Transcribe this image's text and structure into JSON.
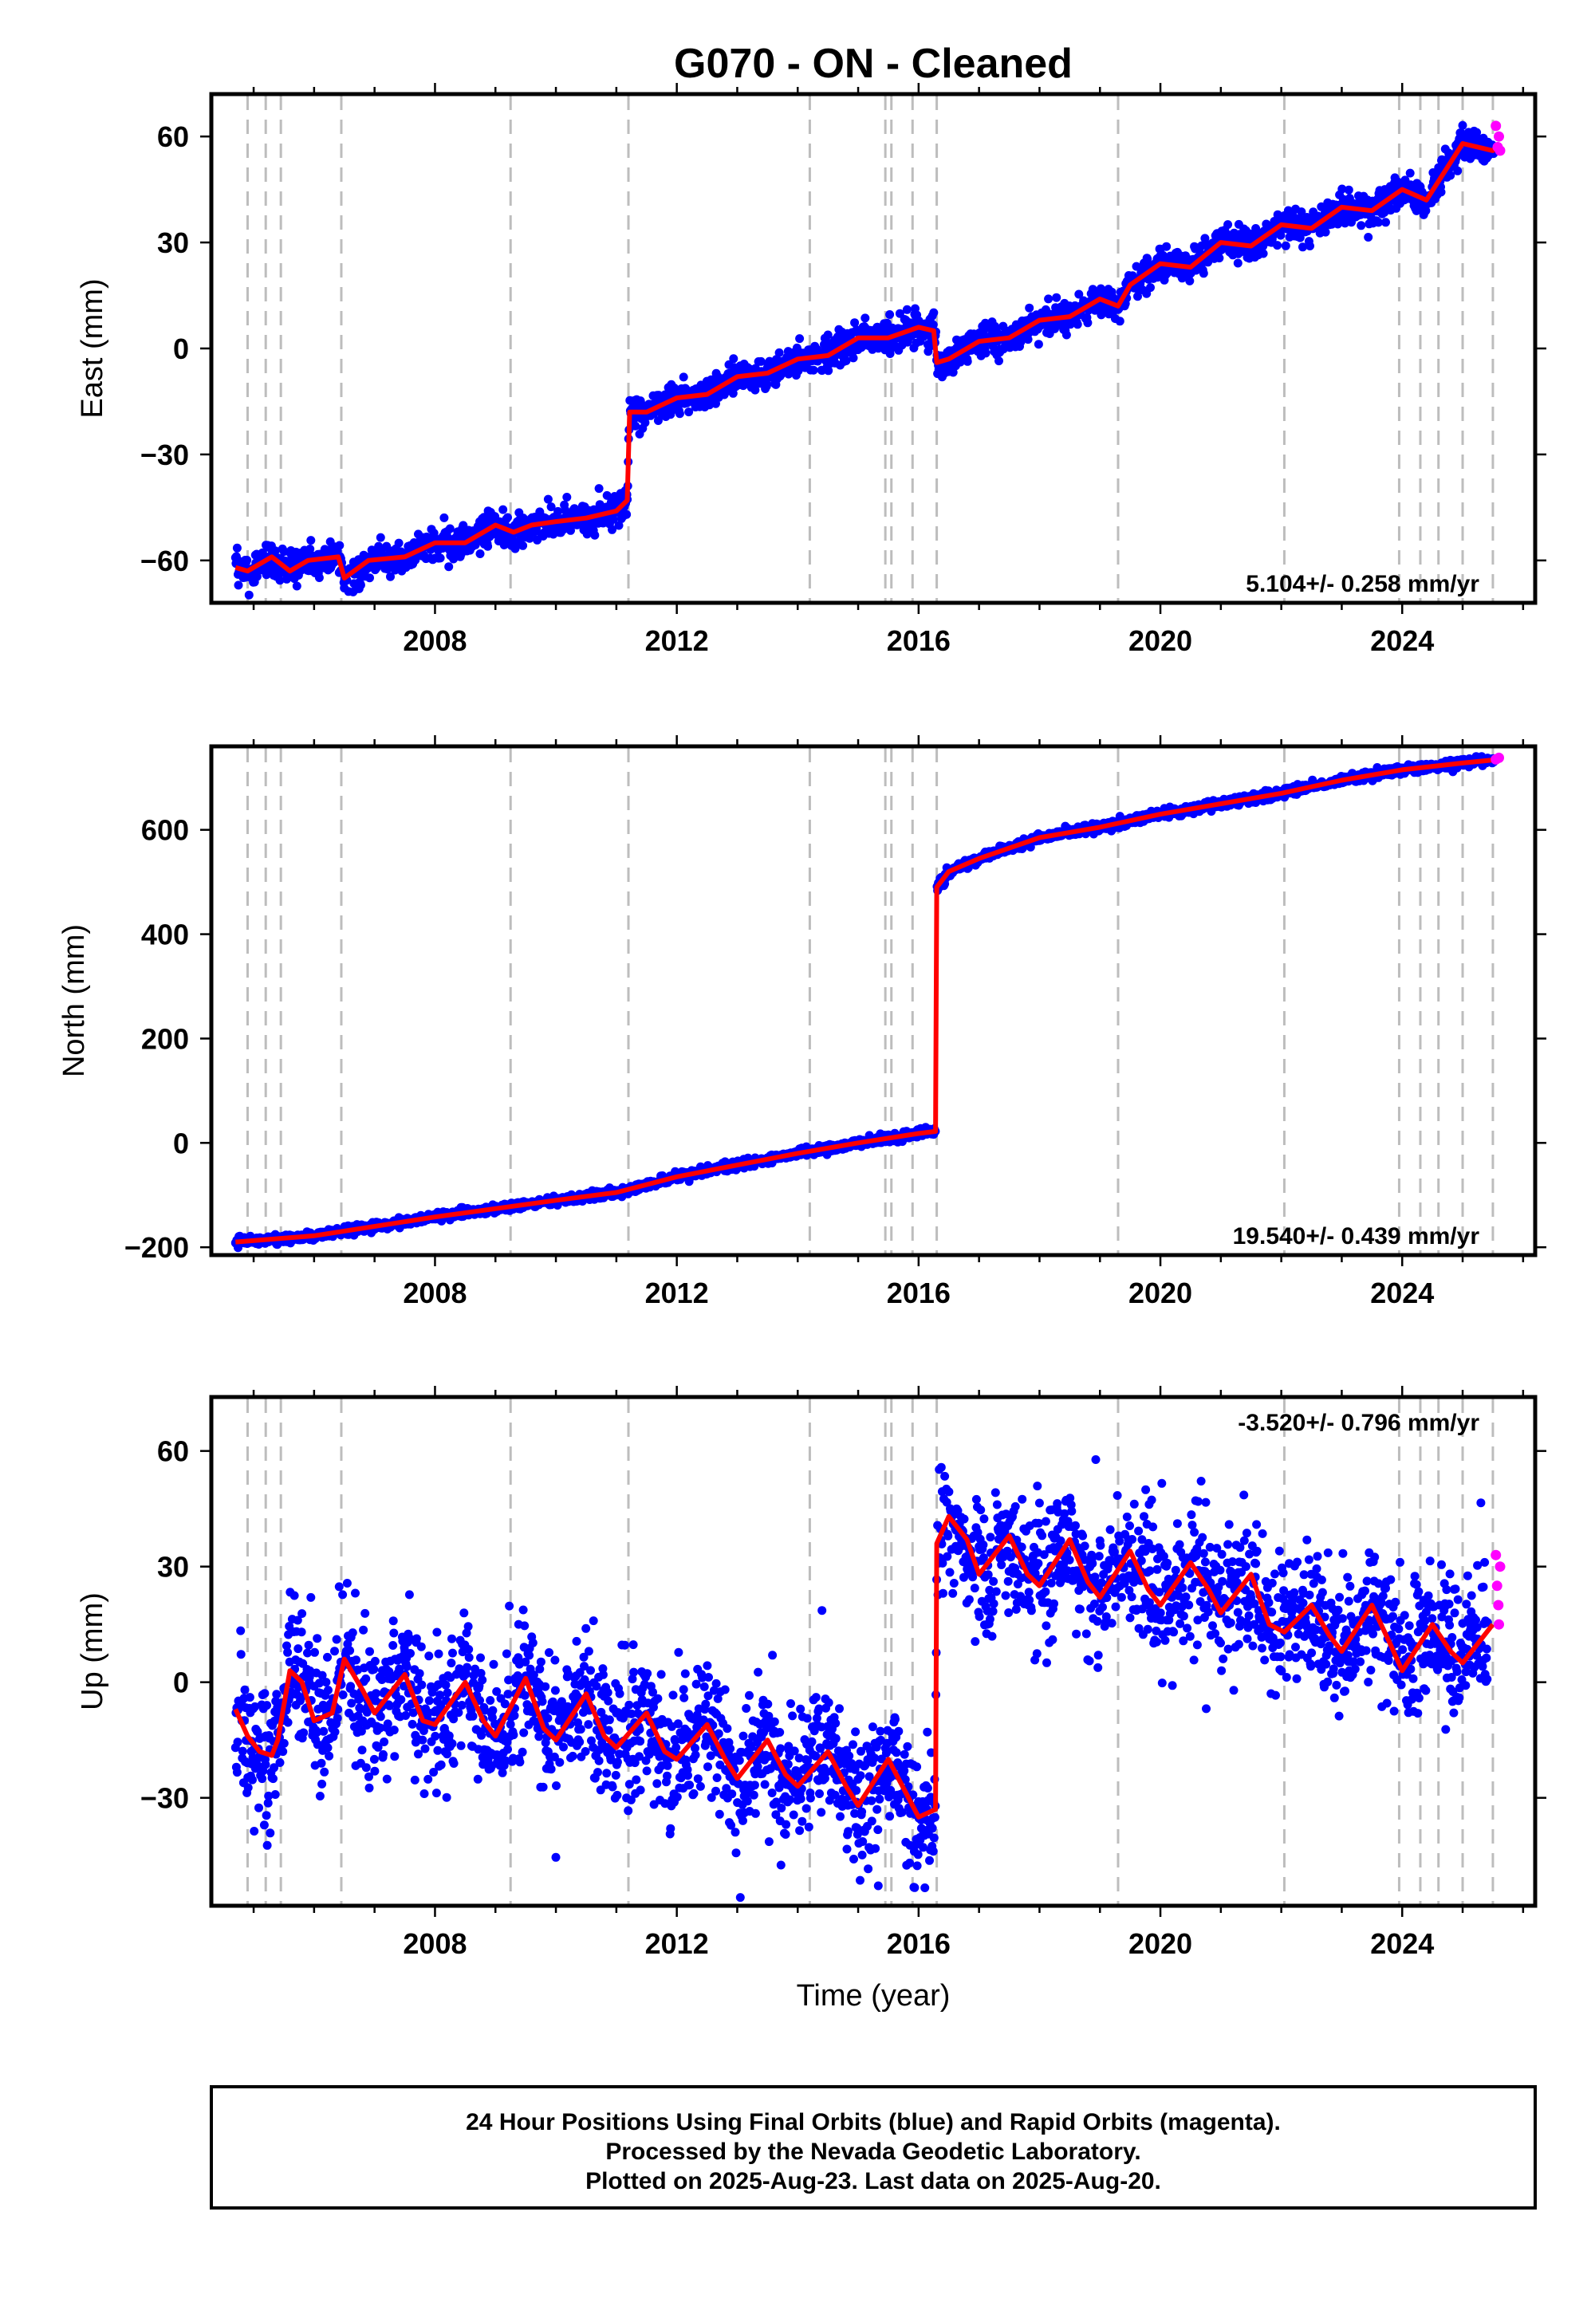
{
  "title": "G070  - ON - Cleaned",
  "footer": [
    "24 Hour Positions Using Final Orbits (blue) and Rapid Orbits (magenta).",
    "Processed by the Nevada Geodetic Laboratory.",
    "Plotted on 2025-Aug-23. Last data on 2025-Aug-20."
  ],
  "colors": {
    "final": "#0000ff",
    "rapid": "#ff00ff",
    "model": "#ff0000",
    "events": "#bdbdbd"
  },
  "chart_data": [
    {
      "type": "scatter",
      "ylabel": "East (mm)",
      "xlabel": "",
      "rate_label": "5.104+/- 0.258 mm/yr",
      "xlim": [
        2004.3,
        2026.2
      ],
      "ylim": [
        -72,
        72
      ],
      "xticks": [
        2008,
        2012,
        2016,
        2020,
        2024
      ],
      "yticks": [
        -60,
        -30,
        0,
        30,
        60
      ],
      "ytick_labels": [
        "−60",
        "−30",
        "0",
        "30",
        "60"
      ],
      "grid": false,
      "event_lines": [
        2004.9,
        2005.2,
        2005.45,
        2006.45,
        2009.25,
        2011.2,
        2014.2,
        2015.45,
        2015.55,
        2015.9,
        2016.3,
        2019.3,
        2022.05,
        2023.95,
        2024.3,
        2024.6,
        2025.0,
        2025.5
      ],
      "series": [
        {
          "role": "model",
          "x": [
            2004.7,
            2004.9,
            2005.3,
            2005.6,
            2005.9,
            2006.4,
            2006.5,
            2006.9,
            2007.5,
            2008.0,
            2008.5,
            2009.0,
            2009.3,
            2009.6,
            2010.0,
            2010.5,
            2011.0,
            2011.18,
            2011.22,
            2011.5,
            2012.0,
            2012.5,
            2013.0,
            2013.5,
            2014.0,
            2014.5,
            2015.0,
            2015.5,
            2016.0,
            2016.25,
            2016.3,
            2016.5,
            2017.0,
            2017.5,
            2018.0,
            2018.5,
            2019.0,
            2019.3,
            2019.5,
            2020.0,
            2020.5,
            2021.0,
            2021.5,
            2022.0,
            2022.5,
            2023.0,
            2023.5,
            2024.0,
            2024.4,
            2024.7,
            2025.0,
            2025.5,
            2025.6
          ],
          "y": [
            -62,
            -63,
            -59,
            -63,
            -60,
            -59,
            -65,
            -60,
            -59,
            -55,
            -55,
            -50,
            -52,
            -50,
            -49,
            -48,
            -46,
            -43,
            -18,
            -18,
            -14,
            -13,
            -8,
            -7,
            -3,
            -2,
            3,
            3,
            6,
            5,
            -4,
            -3,
            2,
            3,
            8,
            9,
            14,
            12,
            18,
            24,
            23,
            30,
            29,
            35,
            34,
            40,
            39,
            45,
            42,
            50,
            58,
            56,
            58
          ]
        },
        {
          "role": "rapid",
          "x": [
            2025.55,
            2025.58,
            2025.6,
            2025.62
          ],
          "y": [
            63,
            57,
            60,
            56
          ]
        }
      ]
    },
    {
      "type": "scatter",
      "ylabel": "North (mm)",
      "xlabel": "",
      "rate_label": "19.540+/- 0.439 mm/yr",
      "xlim": [
        2004.3,
        2026.2
      ],
      "ylim": [
        -215,
        760
      ],
      "xticks": [
        2008,
        2012,
        2016,
        2020,
        2024
      ],
      "yticks": [
        -200,
        0,
        200,
        400,
        600
      ],
      "ytick_labels": [
        "−200",
        "0",
        "200",
        "400",
        "600"
      ],
      "grid": false,
      "event_lines": [
        2004.9,
        2005.2,
        2005.45,
        2006.45,
        2009.25,
        2011.2,
        2014.2,
        2015.45,
        2015.55,
        2015.9,
        2016.3,
        2019.3,
        2022.05,
        2023.95,
        2024.3,
        2024.6,
        2025.0,
        2025.5
      ],
      "series": [
        {
          "role": "model",
          "x": [
            2004.7,
            2006.0,
            2008.0,
            2010.0,
            2011.0,
            2012.0,
            2014.0,
            2015.0,
            2016.0,
            2016.28,
            2016.3,
            2016.5,
            2017.0,
            2018.0,
            2019.0,
            2020.0,
            2021.0,
            2022.0,
            2023.0,
            2024.0,
            2025.0,
            2025.6
          ],
          "y": [
            -190,
            -178,
            -142,
            -110,
            -95,
            -65,
            -20,
            0,
            18,
            22,
            490,
            520,
            545,
            585,
            605,
            630,
            650,
            670,
            695,
            715,
            728,
            735
          ]
        },
        {
          "role": "rapid",
          "x": [
            2025.55,
            2025.6
          ],
          "y": [
            735,
            738
          ]
        }
      ]
    },
    {
      "type": "scatter",
      "ylabel": "Up (mm)",
      "xlabel": "Time (year)",
      "rate_label": "-3.520+/- 0.796 mm/yr",
      "xlim": [
        2004.3,
        2026.2
      ],
      "ylim": [
        -58,
        74
      ],
      "xticks": [
        2008,
        2012,
        2016,
        2020,
        2024
      ],
      "yticks": [
        -30,
        0,
        30,
        60
      ],
      "ytick_labels": [
        "−30",
        "0",
        "30",
        "60"
      ],
      "grid": false,
      "event_lines": [
        2004.9,
        2005.2,
        2005.45,
        2006.45,
        2009.25,
        2011.2,
        2014.2,
        2015.45,
        2015.55,
        2015.9,
        2016.3,
        2019.3,
        2022.05,
        2023.95,
        2024.3,
        2024.6,
        2025.0,
        2025.5
      ],
      "series": [
        {
          "role": "model",
          "x": [
            2004.7,
            2004.9,
            2005.1,
            2005.3,
            2005.4,
            2005.6,
            2005.8,
            2006.0,
            2006.3,
            2006.5,
            2006.8,
            2007.0,
            2007.5,
            2007.8,
            2008.0,
            2008.5,
            2008.8,
            2009.0,
            2009.5,
            2009.8,
            2010.0,
            2010.5,
            2010.8,
            2011.0,
            2011.5,
            2011.8,
            2012.0,
            2012.5,
            2012.8,
            2013.0,
            2013.5,
            2013.8,
            2014.0,
            2014.5,
            2014.8,
            2015.0,
            2015.5,
            2015.8,
            2016.0,
            2016.28,
            2016.3,
            2016.5,
            2016.8,
            2017.0,
            2017.5,
            2017.8,
            2018.0,
            2018.5,
            2018.8,
            2019.0,
            2019.5,
            2019.8,
            2020.0,
            2020.5,
            2020.8,
            2021.0,
            2021.5,
            2021.8,
            2022.05,
            2022.5,
            2022.8,
            2023.0,
            2023.5,
            2023.8,
            2024.0,
            2024.5,
            2024.8,
            2025.0,
            2025.5
          ],
          "y": [
            -7,
            -14,
            -18,
            -19,
            -15,
            3,
            0,
            -10,
            -8,
            6,
            -2,
            -8,
            2,
            -10,
            -11,
            0,
            -10,
            -14,
            1,
            -12,
            -15,
            -3,
            -14,
            -17,
            -8,
            -18,
            -20,
            -11,
            -20,
            -25,
            -15,
            -24,
            -27,
            -18,
            -27,
            -32,
            -20,
            -29,
            -35,
            -33,
            36,
            43,
            37,
            28,
            38,
            28,
            25,
            37,
            26,
            22,
            34,
            24,
            20,
            31,
            24,
            18,
            28,
            15,
            13,
            20,
            12,
            8,
            20,
            10,
            3,
            15,
            8,
            5,
            15
          ]
        },
        {
          "role": "rapid",
          "x": [
            2025.55,
            2025.57,
            2025.59,
            2025.6,
            2025.62
          ],
          "y": [
            33,
            25,
            20,
            15,
            30
          ]
        }
      ]
    }
  ]
}
